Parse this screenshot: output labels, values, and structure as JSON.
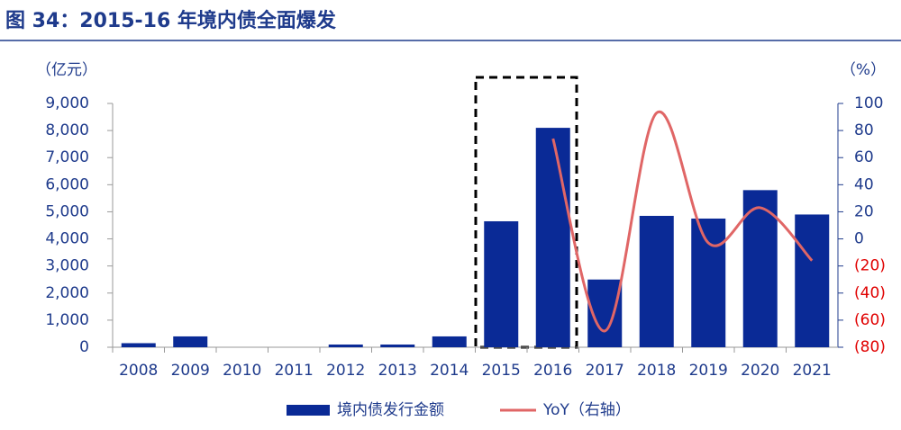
{
  "chart_data": {
    "type": "bar",
    "title": "图 34：2015-16 年境内债全面爆发",
    "y_label": "（亿元）",
    "y2_label": "（%）",
    "categories": [
      "2008",
      "2009",
      "2010",
      "2011",
      "2012",
      "2013",
      "2014",
      "2015",
      "2016",
      "2017",
      "2018",
      "2019",
      "2020",
      "2021"
    ],
    "series": [
      {
        "name": "境内债发行金额",
        "type": "bar",
        "color": "#0a2a96",
        "values": [
          150,
          400,
          0,
          0,
          100,
          100,
          400,
          4650,
          8100,
          2500,
          4850,
          4750,
          5800,
          4900
        ]
      },
      {
        "name": "YoY（右轴）",
        "type": "line",
        "axis": "y2",
        "color": "#e06666",
        "values": [
          null,
          null,
          null,
          null,
          null,
          null,
          null,
          null,
          74,
          -68,
          93,
          -3,
          23,
          -16
        ]
      }
    ],
    "ylim": [
      0,
      9000
    ],
    "yticks": [
      0,
      {
        "value": 1000,
        "label": "1,000"
      },
      {
        "value": 2000,
        "label": "2,000"
      },
      {
        "value": 3000,
        "label": "3,000"
      },
      {
        "value": 4000,
        "label": "4,000"
      },
      {
        "value": 5000,
        "label": "5,000"
      },
      {
        "value": 6000,
        "label": "6,000"
      },
      {
        "value": 7000,
        "label": "7,000"
      },
      {
        "value": 8000,
        "label": "8,000"
      },
      {
        "value": 9000,
        "label": "9,000"
      }
    ],
    "y2lim": [
      -80,
      100
    ],
    "y2ticks": [
      {
        "value": -80,
        "label": "(80)"
      },
      {
        "value": -60,
        "label": "(60)"
      },
      {
        "value": -40,
        "label": "(40)"
      },
      {
        "value": -20,
        "label": "(20)"
      },
      0,
      20,
      40,
      60,
      80,
      100
    ],
    "y2_negative_color": "#e00000",
    "grid": false,
    "legend": "bottom"
  }
}
